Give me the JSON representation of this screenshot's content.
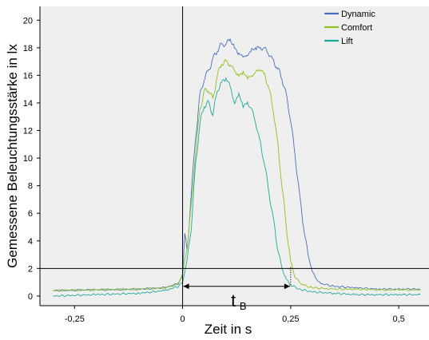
{
  "chart_data": {
    "type": "line",
    "title": "",
    "xlabel": "Zeit in s",
    "ylabel": "Gemessene Beleuchtungsstärke in lx",
    "xlim": [
      -0.33,
      0.57
    ],
    "ylim": [
      -0.7,
      21
    ],
    "x_ticks": [
      -0.25,
      0,
      0.25,
      0.5
    ],
    "x_tick_labels": [
      "-0,25",
      "0",
      "0,25",
      "0,5"
    ],
    "y_ticks": [
      0,
      2,
      4,
      6,
      8,
      10,
      12,
      14,
      16,
      18,
      20
    ],
    "y_tick_labels": [
      "0",
      "2",
      "4",
      "6",
      "8",
      "10",
      "12",
      "14",
      "16",
      "18",
      "20"
    ],
    "grid": false,
    "legend_position": "top-right",
    "background": "#efefef",
    "reference_lines": {
      "vertical_x": 0,
      "horizontal_y": 2
    },
    "annotation": {
      "label_main": "t",
      "label_sub": "B",
      "from_x": 0,
      "to_x": 0.25,
      "y": 0.7
    },
    "series": [
      {
        "name": "Dynamic",
        "color": "#4a6fc0",
        "x": [
          -0.3,
          -0.2,
          -0.1,
          -0.04,
          -0.01,
          0.0,
          0.005,
          0.01,
          0.015,
          0.02,
          0.03,
          0.04,
          0.05,
          0.06,
          0.07,
          0.08,
          0.09,
          0.1,
          0.11,
          0.12,
          0.13,
          0.14,
          0.15,
          0.16,
          0.17,
          0.18,
          0.19,
          0.2,
          0.21,
          0.22,
          0.23,
          0.24,
          0.25,
          0.26,
          0.27,
          0.28,
          0.29,
          0.3,
          0.31,
          0.32,
          0.35,
          0.4,
          0.45,
          0.5,
          0.55
        ],
        "y": [
          0.4,
          0.45,
          0.5,
          0.6,
          0.9,
          1.5,
          4.5,
          3.5,
          4.8,
          7.5,
          11.5,
          14.5,
          15.8,
          16.3,
          17.2,
          17.8,
          18.2,
          18.3,
          18.6,
          18.0,
          17.6,
          17.3,
          17.5,
          17.8,
          18.0,
          18.0,
          17.9,
          17.6,
          17.0,
          16.5,
          15.8,
          14.5,
          12.8,
          10.2,
          7.5,
          5.0,
          3.0,
          1.8,
          1.2,
          0.9,
          0.7,
          0.6,
          0.5,
          0.5,
          0.5
        ]
      },
      {
        "name": "Comfort",
        "color": "#8dc21f",
        "x": [
          -0.3,
          -0.2,
          -0.1,
          -0.04,
          -0.01,
          0.0,
          0.01,
          0.02,
          0.03,
          0.04,
          0.05,
          0.06,
          0.07,
          0.08,
          0.09,
          0.1,
          0.11,
          0.12,
          0.13,
          0.14,
          0.15,
          0.16,
          0.17,
          0.18,
          0.19,
          0.2,
          0.21,
          0.22,
          0.23,
          0.24,
          0.25,
          0.26,
          0.27,
          0.28,
          0.3,
          0.35,
          0.4,
          0.45,
          0.5,
          0.55
        ],
        "y": [
          0.4,
          0.45,
          0.5,
          0.6,
          0.9,
          1.6,
          3.5,
          6.5,
          10.5,
          13.5,
          14.8,
          15.0,
          14.2,
          16.0,
          16.8,
          17.0,
          16.8,
          16.3,
          16.0,
          16.2,
          15.8,
          16.0,
          16.2,
          16.5,
          16.0,
          15.0,
          13.5,
          11.0,
          8.0,
          5.0,
          2.5,
          1.4,
          1.0,
          0.8,
          0.6,
          0.5,
          0.5,
          0.45,
          0.45,
          0.45
        ]
      },
      {
        "name": "Lift",
        "color": "#1fa99a",
        "x": [
          -0.3,
          -0.2,
          -0.1,
          -0.04,
          -0.01,
          0.0,
          0.01,
          0.02,
          0.03,
          0.04,
          0.05,
          0.06,
          0.07,
          0.08,
          0.09,
          0.1,
          0.11,
          0.12,
          0.13,
          0.14,
          0.15,
          0.16,
          0.17,
          0.18,
          0.19,
          0.2,
          0.21,
          0.22,
          0.23,
          0.24,
          0.25,
          0.27,
          0.3,
          0.35,
          0.4,
          0.45,
          0.5,
          0.55
        ],
        "y": [
          0.0,
          0.1,
          0.2,
          0.4,
          0.7,
          1.0,
          2.5,
          5.0,
          9.5,
          12.5,
          13.8,
          14.0,
          13.2,
          14.8,
          15.5,
          15.8,
          15.2,
          14.0,
          14.6,
          13.8,
          14.0,
          13.5,
          12.5,
          11.0,
          9.5,
          7.5,
          5.5,
          3.5,
          2.0,
          1.2,
          0.8,
          0.5,
          0.3,
          0.2,
          0.1,
          0.1,
          0.1,
          0.1
        ]
      }
    ]
  }
}
